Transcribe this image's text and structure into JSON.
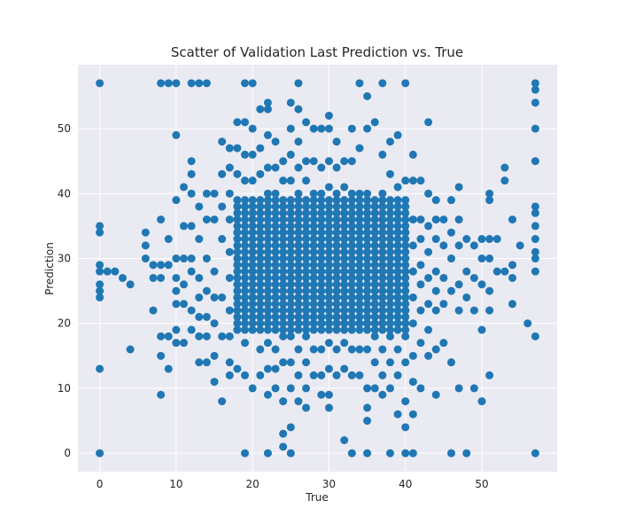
{
  "chart_data": {
    "type": "scatter",
    "title": "Scatter of Validation Last Prediction vs. True",
    "xlabel": "True",
    "ylabel": "Prediction",
    "xlim": [
      -2.85,
      59.85
    ],
    "ylim": [
      -2.85,
      59.85
    ],
    "xticks": [
      0,
      10,
      20,
      30,
      40,
      50
    ],
    "yticks": [
      0,
      10,
      20,
      30,
      40,
      50
    ],
    "grid": true,
    "legend": "none",
    "colors": {
      "background": "#eaeaf2",
      "grid": "#ffffff",
      "points": "#1f77b4"
    },
    "points": [
      [
        0,
        57
      ],
      [
        8,
        57
      ],
      [
        9,
        57
      ],
      [
        10,
        57
      ],
      [
        12,
        57
      ],
      [
        13,
        57
      ],
      [
        14,
        57
      ],
      [
        19,
        57
      ],
      [
        20,
        57
      ],
      [
        26,
        57
      ],
      [
        34,
        57
      ],
      [
        37,
        57
      ],
      [
        40,
        57
      ],
      [
        57,
        57
      ],
      [
        57,
        56
      ],
      [
        0,
        35
      ],
      [
        0,
        34
      ],
      [
        0,
        29
      ],
      [
        0,
        28
      ],
      [
        0,
        26
      ],
      [
        0,
        25
      ],
      [
        0,
        24
      ],
      [
        0,
        13
      ],
      [
        0,
        0
      ],
      [
        1,
        28
      ],
      [
        2,
        28
      ],
      [
        3,
        27
      ],
      [
        4,
        26
      ],
      [
        4,
        16
      ],
      [
        6,
        34
      ],
      [
        6,
        32
      ],
      [
        6,
        30
      ],
      [
        7,
        29
      ],
      [
        7,
        27
      ],
      [
        7,
        22
      ],
      [
        8,
        36
      ],
      [
        8,
        29
      ],
      [
        8,
        27
      ],
      [
        8,
        18
      ],
      [
        8,
        15
      ],
      [
        8,
        9
      ],
      [
        9,
        33
      ],
      [
        9,
        29
      ],
      [
        9,
        18
      ],
      [
        9,
        13
      ],
      [
        10,
        49
      ],
      [
        10,
        39
      ],
      [
        10,
        30
      ],
      [
        10,
        27
      ],
      [
        10,
        25
      ],
      [
        10,
        23
      ],
      [
        10,
        19
      ],
      [
        10,
        17
      ],
      [
        11,
        41
      ],
      [
        11,
        35
      ],
      [
        11,
        30
      ],
      [
        11,
        26
      ],
      [
        11,
        23
      ],
      [
        11,
        17
      ],
      [
        12,
        45
      ],
      [
        12,
        43
      ],
      [
        12,
        40
      ],
      [
        12,
        35
      ],
      [
        12,
        30
      ],
      [
        12,
        28
      ],
      [
        12,
        22
      ],
      [
        12,
        19
      ],
      [
        13,
        38
      ],
      [
        13,
        33
      ],
      [
        13,
        27
      ],
      [
        13,
        24
      ],
      [
        13,
        21
      ],
      [
        13,
        18
      ],
      [
        13,
        14
      ],
      [
        14,
        40
      ],
      [
        14,
        36
      ],
      [
        14,
        30
      ],
      [
        14,
        25
      ],
      [
        14,
        21
      ],
      [
        14,
        18
      ],
      [
        14,
        14
      ],
      [
        15,
        40
      ],
      [
        15,
        36
      ],
      [
        15,
        28
      ],
      [
        15,
        24
      ],
      [
        15,
        20
      ],
      [
        15,
        15
      ],
      [
        15,
        11
      ],
      [
        16,
        48
      ],
      [
        16,
        43
      ],
      [
        16,
        38
      ],
      [
        16,
        33
      ],
      [
        16,
        24
      ],
      [
        16,
        18
      ],
      [
        16,
        8
      ],
      [
        17,
        47
      ],
      [
        17,
        44
      ],
      [
        17,
        40
      ],
      [
        17,
        36
      ],
      [
        17,
        31
      ],
      [
        17,
        27
      ],
      [
        17,
        22
      ],
      [
        17,
        18
      ],
      [
        17,
        14
      ],
      [
        17,
        12
      ],
      [
        18,
        51
      ],
      [
        18,
        47
      ],
      [
        18,
        43
      ],
      [
        18,
        38
      ],
      [
        18,
        34
      ],
      [
        18,
        29
      ],
      [
        18,
        24
      ],
      [
        18,
        19
      ],
      [
        18,
        13
      ],
      [
        19,
        51
      ],
      [
        19,
        46
      ],
      [
        19,
        42
      ],
      [
        19,
        38
      ],
      [
        19,
        33
      ],
      [
        19,
        29
      ],
      [
        19,
        23
      ],
      [
        19,
        17
      ],
      [
        19,
        12
      ],
      [
        19,
        0
      ],
      [
        20,
        50
      ],
      [
        20,
        46
      ],
      [
        20,
        42
      ],
      [
        20,
        37
      ],
      [
        20,
        32
      ],
      [
        20,
        28
      ],
      [
        20,
        24
      ],
      [
        20,
        19
      ],
      [
        20,
        10
      ],
      [
        21,
        53
      ],
      [
        21,
        47
      ],
      [
        21,
        43
      ],
      [
        21,
        38
      ],
      [
        21,
        34
      ],
      [
        21,
        30
      ],
      [
        21,
        26
      ],
      [
        21,
        21
      ],
      [
        21,
        16
      ],
      [
        21,
        12
      ],
      [
        22,
        54
      ],
      [
        22,
        53
      ],
      [
        22,
        49
      ],
      [
        22,
        44
      ],
      [
        22,
        40
      ],
      [
        22,
        35
      ],
      [
        22,
        30
      ],
      [
        22,
        26
      ],
      [
        22,
        22
      ],
      [
        22,
        17
      ],
      [
        22,
        13
      ],
      [
        22,
        9
      ],
      [
        22,
        0
      ],
      [
        23,
        48
      ],
      [
        23,
        44
      ],
      [
        23,
        40
      ],
      [
        23,
        36
      ],
      [
        23,
        32
      ],
      [
        23,
        28
      ],
      [
        23,
        24
      ],
      [
        23,
        20
      ],
      [
        23,
        16
      ],
      [
        23,
        13
      ],
      [
        23,
        10
      ],
      [
        24,
        45
      ],
      [
        24,
        42
      ],
      [
        24,
        38
      ],
      [
        24,
        34
      ],
      [
        24,
        30
      ],
      [
        24,
        26
      ],
      [
        24,
        22
      ],
      [
        24,
        18
      ],
      [
        24,
        14
      ],
      [
        24,
        8
      ],
      [
        24,
        3
      ],
      [
        24,
        1
      ],
      [
        25,
        54
      ],
      [
        25,
        50
      ],
      [
        25,
        46
      ],
      [
        25,
        42
      ],
      [
        25,
        38
      ],
      [
        25,
        34
      ],
      [
        25,
        30
      ],
      [
        25,
        26
      ],
      [
        25,
        22
      ],
      [
        25,
        18
      ],
      [
        25,
        14
      ],
      [
        25,
        10
      ],
      [
        25,
        4
      ],
      [
        25,
        0
      ],
      [
        26,
        53
      ],
      [
        26,
        48
      ],
      [
        26,
        44
      ],
      [
        26,
        40
      ],
      [
        26,
        36
      ],
      [
        26,
        32
      ],
      [
        26,
        28
      ],
      [
        26,
        24
      ],
      [
        26,
        20
      ],
      [
        26,
        16
      ],
      [
        26,
        12
      ],
      [
        26,
        8
      ],
      [
        27,
        51
      ],
      [
        27,
        45
      ],
      [
        27,
        42
      ],
      [
        27,
        38
      ],
      [
        27,
        34
      ],
      [
        27,
        30
      ],
      [
        27,
        26
      ],
      [
        27,
        22
      ],
      [
        27,
        18
      ],
      [
        27,
        14
      ],
      [
        27,
        10
      ],
      [
        27,
        7
      ],
      [
        28,
        50
      ],
      [
        28,
        45
      ],
      [
        28,
        40
      ],
      [
        28,
        36
      ],
      [
        28,
        32
      ],
      [
        28,
        28
      ],
      [
        28,
        24
      ],
      [
        28,
        20
      ],
      [
        28,
        16
      ],
      [
        28,
        12
      ],
      [
        29,
        50
      ],
      [
        29,
        44
      ],
      [
        29,
        40
      ],
      [
        29,
        36
      ],
      [
        29,
        32
      ],
      [
        29,
        28
      ],
      [
        29,
        24
      ],
      [
        29,
        20
      ],
      [
        29,
        16
      ],
      [
        29,
        12
      ],
      [
        29,
        9
      ],
      [
        30,
        52
      ],
      [
        30,
        50
      ],
      [
        30,
        45
      ],
      [
        30,
        41
      ],
      [
        30,
        37
      ],
      [
        30,
        33
      ],
      [
        30,
        29
      ],
      [
        30,
        25
      ],
      [
        30,
        21
      ],
      [
        30,
        17
      ],
      [
        30,
        13
      ],
      [
        30,
        9
      ],
      [
        30,
        7
      ],
      [
        31,
        48
      ],
      [
        31,
        44
      ],
      [
        31,
        40
      ],
      [
        31,
        36
      ],
      [
        31,
        32
      ],
      [
        31,
        28
      ],
      [
        31,
        24
      ],
      [
        31,
        20
      ],
      [
        31,
        16
      ],
      [
        31,
        12
      ],
      [
        32,
        45
      ],
      [
        32,
        41
      ],
      [
        32,
        37
      ],
      [
        32,
        33
      ],
      [
        32,
        29
      ],
      [
        32,
        25
      ],
      [
        32,
        21
      ],
      [
        32,
        17
      ],
      [
        32,
        13
      ],
      [
        32,
        2
      ],
      [
        33,
        50
      ],
      [
        33,
        45
      ],
      [
        33,
        40
      ],
      [
        33,
        36
      ],
      [
        33,
        32
      ],
      [
        33,
        28
      ],
      [
        33,
        24
      ],
      [
        33,
        20
      ],
      [
        33,
        16
      ],
      [
        33,
        12
      ],
      [
        33,
        0
      ],
      [
        34,
        47
      ],
      [
        34,
        40
      ],
      [
        34,
        36
      ],
      [
        34,
        32
      ],
      [
        34,
        28
      ],
      [
        34,
        24
      ],
      [
        34,
        20
      ],
      [
        34,
        16
      ],
      [
        34,
        12
      ],
      [
        35,
        55
      ],
      [
        35,
        50
      ],
      [
        35,
        40
      ],
      [
        35,
        36
      ],
      [
        35,
        32
      ],
      [
        35,
        28
      ],
      [
        35,
        24
      ],
      [
        35,
        20
      ],
      [
        35,
        16
      ],
      [
        35,
        10
      ],
      [
        35,
        7
      ],
      [
        35,
        5
      ],
      [
        35,
        0
      ],
      [
        36,
        51
      ],
      [
        36,
        38
      ],
      [
        36,
        34
      ],
      [
        36,
        30
      ],
      [
        36,
        26
      ],
      [
        36,
        22
      ],
      [
        36,
        18
      ],
      [
        36,
        14
      ],
      [
        36,
        10
      ],
      [
        37,
        46
      ],
      [
        37,
        40
      ],
      [
        37,
        36
      ],
      [
        37,
        32
      ],
      [
        37,
        28
      ],
      [
        37,
        24
      ],
      [
        37,
        20
      ],
      [
        37,
        16
      ],
      [
        37,
        12
      ],
      [
        37,
        9
      ],
      [
        38,
        48
      ],
      [
        38,
        43
      ],
      [
        38,
        38
      ],
      [
        38,
        34
      ],
      [
        38,
        30
      ],
      [
        38,
        26
      ],
      [
        38,
        22
      ],
      [
        38,
        18
      ],
      [
        38,
        14
      ],
      [
        38,
        10
      ],
      [
        38,
        0
      ],
      [
        39,
        49
      ],
      [
        39,
        41
      ],
      [
        39,
        36
      ],
      [
        39,
        32
      ],
      [
        39,
        28
      ],
      [
        39,
        24
      ],
      [
        39,
        20
      ],
      [
        39,
        16
      ],
      [
        39,
        12
      ],
      [
        39,
        6
      ],
      [
        40,
        42
      ],
      [
        40,
        38
      ],
      [
        40,
        34
      ],
      [
        40,
        30
      ],
      [
        40,
        26
      ],
      [
        40,
        22
      ],
      [
        40,
        18
      ],
      [
        40,
        14
      ],
      [
        40,
        8
      ],
      [
        40,
        4
      ],
      [
        40,
        0
      ],
      [
        41,
        46
      ],
      [
        41,
        42
      ],
      [
        41,
        36
      ],
      [
        41,
        32
      ],
      [
        41,
        28
      ],
      [
        41,
        24
      ],
      [
        41,
        20
      ],
      [
        41,
        15
      ],
      [
        41,
        11
      ],
      [
        41,
        6
      ],
      [
        41,
        0
      ],
      [
        42,
        42
      ],
      [
        42,
        36
      ],
      [
        42,
        33
      ],
      [
        42,
        29
      ],
      [
        42,
        26
      ],
      [
        42,
        22
      ],
      [
        42,
        17
      ],
      [
        42,
        10
      ],
      [
        43,
        51
      ],
      [
        43,
        40
      ],
      [
        43,
        35
      ],
      [
        43,
        31
      ],
      [
        43,
        27
      ],
      [
        43,
        23
      ],
      [
        43,
        19
      ],
      [
        43,
        15
      ],
      [
        44,
        39
      ],
      [
        44,
        36
      ],
      [
        44,
        33
      ],
      [
        44,
        28
      ],
      [
        44,
        25
      ],
      [
        44,
        22
      ],
      [
        44,
        16
      ],
      [
        44,
        9
      ],
      [
        45,
        36
      ],
      [
        45,
        32
      ],
      [
        45,
        27
      ],
      [
        45,
        23
      ],
      [
        45,
        17
      ],
      [
        46,
        39
      ],
      [
        46,
        34
      ],
      [
        46,
        30
      ],
      [
        46,
        25
      ],
      [
        46,
        14
      ],
      [
        46,
        0
      ],
      [
        47,
        41
      ],
      [
        47,
        36
      ],
      [
        47,
        32
      ],
      [
        47,
        26
      ],
      [
        47,
        22
      ],
      [
        47,
        10
      ],
      [
        48,
        33
      ],
      [
        48,
        28
      ],
      [
        48,
        24
      ],
      [
        48,
        0
      ],
      [
        49,
        32
      ],
      [
        49,
        27
      ],
      [
        49,
        22
      ],
      [
        49,
        10
      ],
      [
        50,
        33
      ],
      [
        50,
        30
      ],
      [
        50,
        26
      ],
      [
        50,
        19
      ],
      [
        50,
        8
      ],
      [
        51,
        40
      ],
      [
        51,
        39
      ],
      [
        51,
        33
      ],
      [
        51,
        30
      ],
      [
        51,
        25
      ],
      [
        51,
        22
      ],
      [
        51,
        12
      ],
      [
        52,
        33
      ],
      [
        52,
        28
      ],
      [
        53,
        44
      ],
      [
        53,
        42
      ],
      [
        53,
        28
      ],
      [
        54,
        36
      ],
      [
        54,
        29
      ],
      [
        54,
        27
      ],
      [
        54,
        23
      ],
      [
        55,
        32
      ],
      [
        56,
        20
      ],
      [
        57,
        54
      ],
      [
        57,
        50
      ],
      [
        57,
        45
      ],
      [
        57,
        38
      ],
      [
        57,
        37
      ],
      [
        57,
        35
      ],
      [
        57,
        33
      ],
      [
        57,
        31
      ],
      [
        57,
        30
      ],
      [
        57,
        28
      ],
      [
        57,
        18
      ],
      [
        57,
        0
      ]
    ],
    "dense_clusters": [
      {
        "x_range": [
          18,
          40
        ],
        "y_range": [
          19,
          39
        ],
        "x_step": 1,
        "y_step": 1
      }
    ]
  }
}
